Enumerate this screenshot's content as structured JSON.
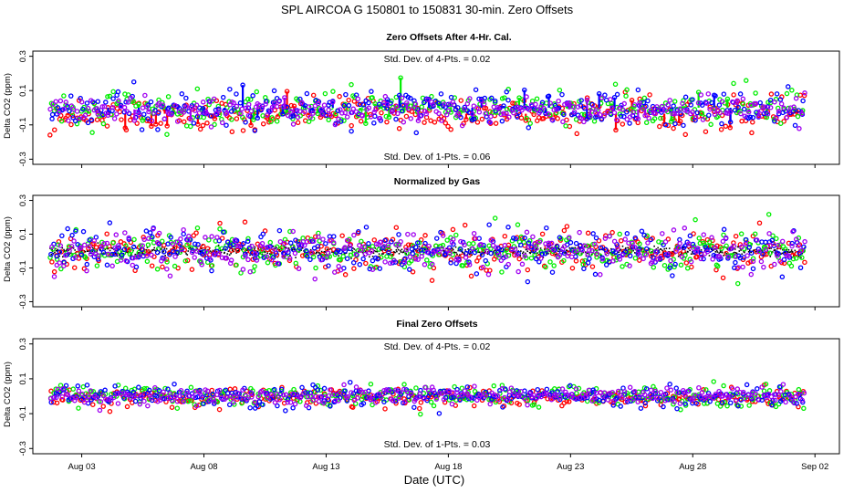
{
  "figure": {
    "title": "SPL   AIRCOA G   150801 to 150831   30-min. Zero Offsets",
    "xlabel": "Date (UTC)"
  },
  "colors": {
    "series_red": "#ff0000",
    "series_green": "#00ee00",
    "series_blue": "#0000ff",
    "series_purple": "#a000f0",
    "series_black": "#000000",
    "axis": "#000000"
  },
  "chart_data": [
    {
      "type": "scatter",
      "title": "Zero Offsets After 4-Hr. Cal.",
      "ylabel": "Delta CO2 (ppm)",
      "ylim": [
        -0.33,
        0.33
      ],
      "yticks": [
        "-0.3",
        "-0.1",
        "0.1",
        "0.3"
      ],
      "xlim": [
        0.0,
        33.0
      ],
      "x_ticks": [
        {
          "x": 2,
          "label": "Aug 03"
        },
        {
          "x": 7,
          "label": "Aug 08"
        },
        {
          "x": 12,
          "label": "Aug 13"
        },
        {
          "x": 17,
          "label": "Aug 18"
        },
        {
          "x": 22,
          "label": "Aug 23"
        },
        {
          "x": 27,
          "label": "Aug 28"
        },
        {
          "x": 32,
          "label": "Sep 02"
        }
      ],
      "annotations": {
        "top": "Std. Dev. of 4-Pts. =  0.02",
        "bottom": "Std. Dev. of 1-Pts. =  0.06"
      },
      "x_range": [
        0.7,
        31.6
      ],
      "series": [
        {
          "name": "red",
          "color": "#ff0000",
          "mean": -0.035,
          "sd": 0.045,
          "sticks": true
        },
        {
          "name": "green",
          "color": "#00ee00",
          "mean": 0.0,
          "sd": 0.05,
          "sticks": true
        },
        {
          "name": "blue",
          "color": "#0000ff",
          "mean": 0.0,
          "sd": 0.05,
          "sticks": true
        },
        {
          "name": "purple",
          "color": "#a000f0",
          "mean": -0.01,
          "sd": 0.04,
          "sticks": true
        }
      ]
    },
    {
      "type": "scatter",
      "title": "Normalized by Gas",
      "ylabel": "Delta CO2 (ppm)",
      "ylim": [
        -0.33,
        0.33
      ],
      "yticks": [
        "-0.3",
        "-0.1",
        "0.1",
        "0.3"
      ],
      "xlim": [
        0.0,
        33.0
      ],
      "x_ticks": [
        {
          "x": 2,
          "label": "Aug 03"
        },
        {
          "x": 7,
          "label": "Aug 08"
        },
        {
          "x": 12,
          "label": "Aug 13"
        },
        {
          "x": 17,
          "label": "Aug 18"
        },
        {
          "x": 22,
          "label": "Aug 23"
        },
        {
          "x": 27,
          "label": "Aug 28"
        },
        {
          "x": 32,
          "label": "Sep 02"
        }
      ],
      "annotations": {
        "top": "",
        "bottom": ""
      },
      "x_range": [
        0.7,
        31.6
      ],
      "series": [
        {
          "name": "black",
          "color": "#000000",
          "mean": 0.0,
          "sd": 0.015,
          "sticks": false
        },
        {
          "name": "red",
          "color": "#ff0000",
          "mean": 0.0,
          "sd": 0.06,
          "sticks": false
        },
        {
          "name": "green",
          "color": "#00ee00",
          "mean": 0.0,
          "sd": 0.06,
          "sticks": false
        },
        {
          "name": "blue",
          "color": "#0000ff",
          "mean": 0.0,
          "sd": 0.06,
          "sticks": false
        },
        {
          "name": "purple",
          "color": "#a000f0",
          "mean": 0.0,
          "sd": 0.06,
          "sticks": false
        }
      ]
    },
    {
      "type": "scatter",
      "title": "Final Zero Offsets",
      "ylabel": "Delta CO2 (ppm)",
      "ylim": [
        -0.33,
        0.33
      ],
      "yticks": [
        "-0.3",
        "-0.1",
        "0.1",
        "0.3"
      ],
      "xlim": [
        0.0,
        33.0
      ],
      "x_ticks": [
        {
          "x": 2,
          "label": "Aug 03"
        },
        {
          "x": 7,
          "label": "Aug 08"
        },
        {
          "x": 12,
          "label": "Aug 13"
        },
        {
          "x": 17,
          "label": "Aug 18"
        },
        {
          "x": 22,
          "label": "Aug 23"
        },
        {
          "x": 27,
          "label": "Aug 28"
        },
        {
          "x": 32,
          "label": "Sep 02"
        }
      ],
      "annotations": {
        "top": "Std. Dev. of 4-Pts. =  0.02",
        "bottom": "Std. Dev. of 1-Pts. =  0.03"
      },
      "x_range": [
        0.7,
        31.6
      ],
      "series": [
        {
          "name": "red",
          "color": "#ff0000",
          "mean": -0.01,
          "sd": 0.025,
          "sticks": false
        },
        {
          "name": "green",
          "color": "#00ee00",
          "mean": 0.0,
          "sd": 0.03,
          "sticks": false
        },
        {
          "name": "blue",
          "color": "#0000ff",
          "mean": 0.0,
          "sd": 0.03,
          "sticks": false
        },
        {
          "name": "purple",
          "color": "#a000f0",
          "mean": 0.0,
          "sd": 0.025,
          "sticks": false
        }
      ]
    }
  ]
}
